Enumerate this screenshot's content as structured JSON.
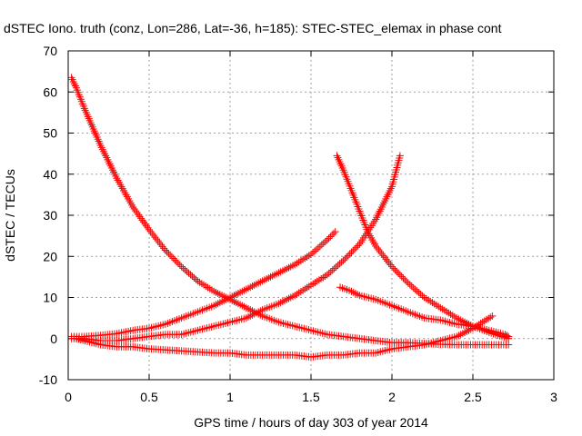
{
  "chart_data": {
    "type": "scatter",
    "title": "dSTEC Iono. truth (conz, Lon=286, Lat=-36, h=185): STEC-STEC_elemax in phase cont",
    "xlabel": "GPS time / hours of day 303 of year 2014",
    "ylabel": "dSTEC  / TECUs",
    "xlim": [
      0,
      3
    ],
    "ylim": [
      -10,
      70
    ],
    "xticks": [
      0,
      0.5,
      1,
      1.5,
      2,
      2.5,
      3
    ],
    "xtick_labels": [
      "0",
      "0.5",
      "1",
      "1.5",
      "2",
      "2.5",
      "3"
    ],
    "yticks": [
      -10,
      0,
      10,
      20,
      30,
      40,
      50,
      60,
      70
    ],
    "ytick_labels": [
      "-10",
      "0",
      "10",
      "20",
      "30",
      "40",
      "50",
      "60",
      "70"
    ],
    "grid": true,
    "marker": "plus",
    "color": "#ff0000",
    "series": [
      {
        "x": [
          0.02,
          0.05,
          0.1,
          0.15,
          0.2,
          0.3,
          0.4,
          0.5,
          0.6,
          0.7,
          0.8,
          0.9,
          1.0,
          1.1,
          1.2,
          1.3,
          1.4,
          1.5,
          1.6,
          1.7,
          1.8,
          1.9,
          2.0,
          2.1,
          2.2,
          2.3,
          2.4,
          2.5,
          2.6,
          2.72
        ],
        "y": [
          63.5,
          61,
          56,
          51.5,
          47,
          39,
          32,
          26.5,
          21.5,
          17.5,
          14,
          11.5,
          9.5,
          7.5,
          5.5,
          4,
          3,
          2,
          1,
          0.5,
          0,
          -0.5,
          -1,
          -1,
          -1.2,
          -1.4,
          -1.5,
          -1.5,
          -1.5,
          -1.5
        ]
      },
      {
        "x": [
          0.02,
          0.1,
          0.2,
          0.3,
          0.4,
          0.5,
          0.6,
          0.7,
          0.8,
          0.9,
          1.0,
          1.1,
          1.2,
          1.3,
          1.4,
          1.5,
          1.6,
          1.65
        ],
        "y": [
          0.5,
          0.5,
          0.8,
          1.2,
          2,
          2.5,
          3.5,
          5,
          6.5,
          8,
          10,
          12,
          14,
          16,
          18,
          20.5,
          24,
          26
        ]
      },
      {
        "x": [
          0.02,
          0.1,
          0.2,
          0.3,
          0.4,
          0.5,
          0.6,
          0.7,
          0.8,
          0.9,
          1.0,
          1.1,
          1.2,
          1.3,
          1.4,
          1.5,
          1.6,
          1.7,
          1.8,
          1.9,
          2.0,
          2.05
        ],
        "y": [
          0,
          0,
          -0.5,
          -0.5,
          0,
          0.5,
          1,
          1,
          2,
          3,
          4,
          5,
          7,
          8.5,
          10.5,
          13,
          15.5,
          19,
          23,
          29,
          37,
          44.5
        ]
      },
      {
        "x": [
          0.05,
          0.2,
          0.3,
          0.4,
          0.5,
          0.7,
          0.9,
          1.0,
          1.1,
          1.2,
          1.3,
          1.4,
          1.5,
          1.6,
          1.7,
          1.8,
          1.9,
          2.0,
          2.1,
          2.2,
          2.3,
          2.4,
          2.5,
          2.62
        ],
        "y": [
          0,
          -1.5,
          -2,
          -2,
          -2.5,
          -3,
          -3.5,
          -3.5,
          -4,
          -4,
          -4,
          -4,
          -4.5,
          -4,
          -4,
          -3.5,
          -3.5,
          -2.5,
          -2,
          -1.5,
          -0.5,
          0.5,
          2.5,
          5.5
        ]
      },
      {
        "x": [
          1.66,
          1.7,
          1.75,
          1.8,
          1.85,
          1.9,
          2.0,
          2.1,
          2.2,
          2.3,
          2.4,
          2.5,
          2.6,
          2.72
        ],
        "y": [
          44.5,
          41,
          36,
          31,
          26,
          22.5,
          17.5,
          13.5,
          10,
          7.5,
          5,
          3,
          1.5,
          0
        ]
      },
      {
        "x": [
          1.68,
          1.75,
          1.8,
          1.9,
          2.0,
          2.1,
          2.2,
          2.3,
          2.4,
          2.5,
          2.6,
          2.7,
          2.72
        ],
        "y": [
          12.5,
          11.5,
          10.5,
          9.5,
          8,
          6.5,
          5,
          4.5,
          3.5,
          3,
          2,
          1,
          0.5
        ]
      }
    ]
  }
}
